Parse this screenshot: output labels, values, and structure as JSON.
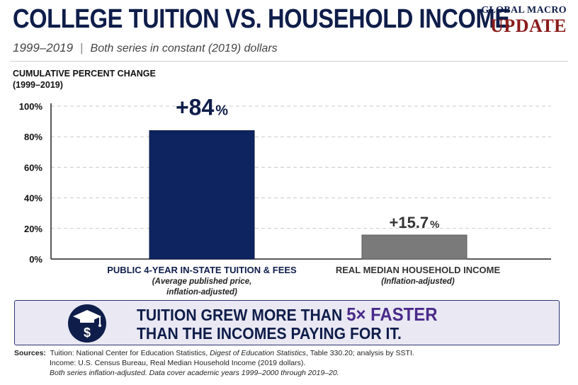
{
  "header": {
    "title": "COLLEGE TUITION VS. HOUSEHOLD INCOME",
    "brand_top": "GLOBAL MACRO",
    "brand_bottom": "UPDATE",
    "subtitle_years": "1999–2019",
    "subtitle_sep": "|",
    "subtitle_desc": "Both series in constant (2019) dollars"
  },
  "chart_data": {
    "type": "bar",
    "ylabel": "CUMULATIVE PERCENT CHANGE",
    "ylabel_sub": "(1999–2019)",
    "ylim": [
      0,
      100
    ],
    "yticks": [
      0,
      20,
      40,
      60,
      80,
      100
    ],
    "ytick_labels": [
      "0%",
      "20%",
      "40%",
      "60%",
      "80%",
      "100%"
    ],
    "grid": true,
    "categories": [
      "PUBLIC 4-YEAR IN-STATE TUITION & FEES",
      "REAL MEDIAN HOUSEHOLD INCOME"
    ],
    "category_notes": [
      "(Average published price, inflation-adjusted)",
      "(Inflation-adjusted)"
    ],
    "values": [
      84,
      15.7
    ],
    "data_labels": [
      "+84",
      "+15.7"
    ],
    "data_label_unit": "%",
    "colors": [
      "#0e2461",
      "#7a7a7a"
    ]
  },
  "banner": {
    "icon": "graduation-cap-dollar-icon",
    "line1_prefix": "TUITION GREW MORE THAN ",
    "line1_highlight": "5× FASTER",
    "line2": "THAN THE INCOMES PAYING FOR IT."
  },
  "sources": {
    "label": "Sources:",
    "line1_a": "Tuition: National Center for Education Statistics, ",
    "line1_italic": "Digest of Education Statistics",
    "line1_b": ", Table 330.20; analysis by SSTI.",
    "line2": "Income: U.S. Census Bureau, Real Median Household Income (2019 dollars).",
    "line3": "Both series inflation-adjusted. Data cover academic years 1999–2000 through 2019–20."
  }
}
